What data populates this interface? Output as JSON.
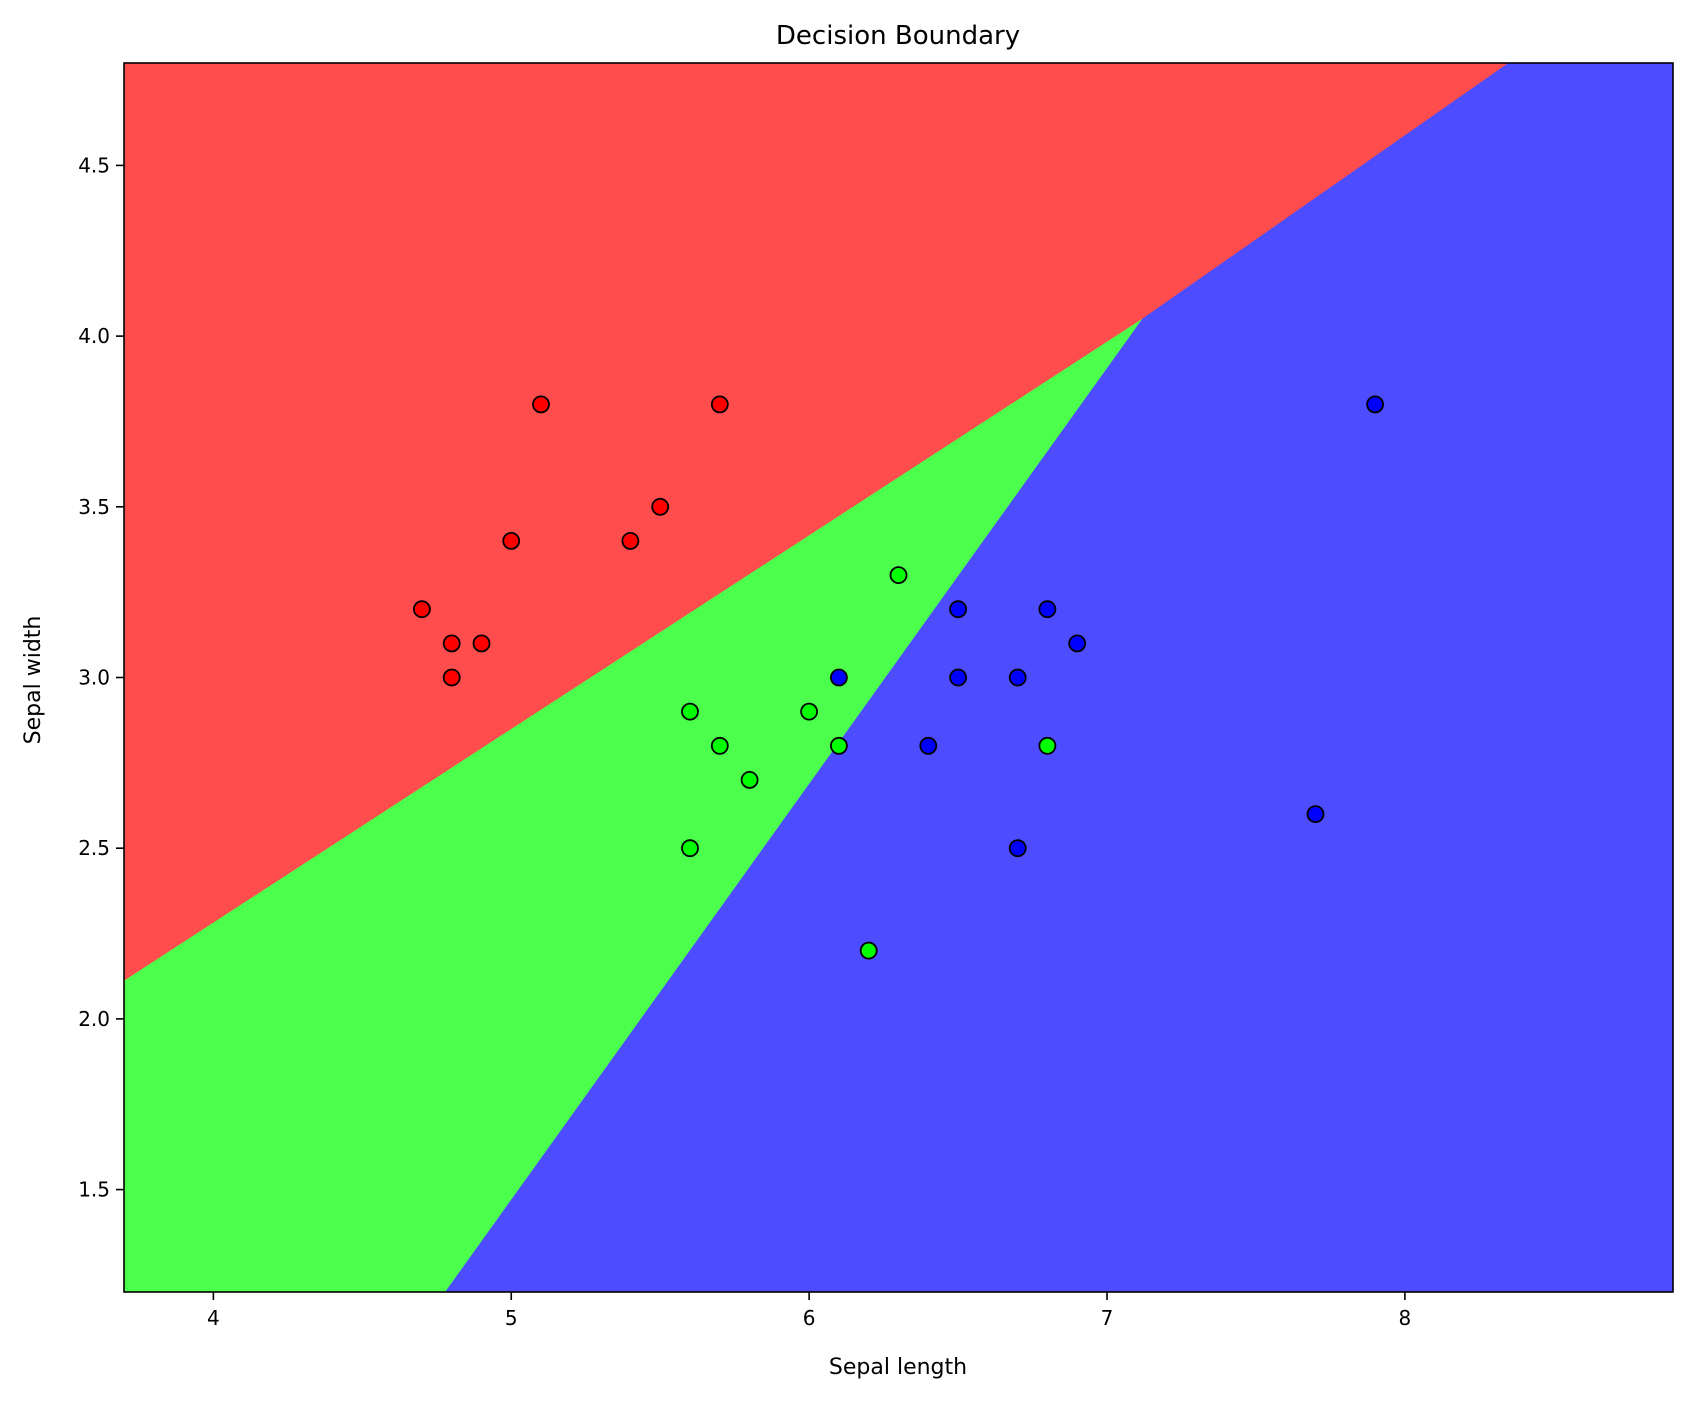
{
  "chart_data": {
    "type": "scatter",
    "title": "Decision Boundary",
    "xlabel": "Sepal length",
    "ylabel": "Sepal width",
    "xlim": [
      3.7,
      8.9
    ],
    "ylim": [
      1.2,
      4.8
    ],
    "x_ticks": [
      4,
      5,
      6,
      7,
      8
    ],
    "y_ticks": [
      1.5,
      2.0,
      2.5,
      3.0,
      3.5,
      4.0,
      4.5
    ],
    "x_tick_labels": [
      "4",
      "5",
      "6",
      "7",
      "8"
    ],
    "y_tick_labels": [
      "1.5",
      "2.0",
      "2.5",
      "3.0",
      "3.5",
      "4.0",
      "4.5"
    ],
    "grid": false,
    "legend": "none",
    "regions": [
      {
        "class": 0,
        "color": "#ff4d4d",
        "polygon": [
          [
            3.7,
            2.11
          ],
          [
            3.7,
            4.8
          ],
          [
            8.35,
            4.8
          ],
          [
            7.12,
            4.05
          ]
        ]
      },
      {
        "class": 1,
        "color": "#4dff4d",
        "polygon": [
          [
            3.7,
            1.2
          ],
          [
            3.7,
            2.11
          ],
          [
            7.12,
            4.05
          ],
          [
            4.78,
            1.2
          ]
        ]
      },
      {
        "class": 2,
        "color": "#4d4dff",
        "polygon": [
          [
            4.78,
            1.2
          ],
          [
            7.12,
            4.05
          ],
          [
            8.35,
            4.8
          ],
          [
            8.9,
            4.8
          ],
          [
            8.9,
            1.2
          ]
        ]
      }
    ],
    "series": [
      {
        "class": 0,
        "color": "#ff0000",
        "points": [
          [
            5.1,
            3.8
          ],
          [
            5.7,
            3.8
          ],
          [
            5.5,
            3.5
          ],
          [
            5.0,
            3.4
          ],
          [
            5.4,
            3.4
          ],
          [
            4.7,
            3.2
          ],
          [
            4.8,
            3.1
          ],
          [
            4.9,
            3.1
          ],
          [
            4.8,
            3.0
          ]
        ]
      },
      {
        "class": 1,
        "color": "#00ff00",
        "points": [
          [
            6.3,
            3.3
          ],
          [
            5.6,
            2.9
          ],
          [
            6.0,
            2.9
          ],
          [
            5.7,
            2.8
          ],
          [
            6.1,
            2.8
          ],
          [
            6.8,
            2.8
          ],
          [
            5.8,
            2.7
          ],
          [
            5.6,
            2.5
          ],
          [
            6.2,
            2.2
          ]
        ]
      },
      {
        "class": 2,
        "color": "#0000ff",
        "points": [
          [
            7.9,
            3.8
          ],
          [
            6.5,
            3.2
          ],
          [
            6.8,
            3.2
          ],
          [
            6.9,
            3.1
          ],
          [
            6.1,
            3.0
          ],
          [
            6.5,
            3.0
          ],
          [
            6.7,
            3.0
          ],
          [
            6.4,
            2.8
          ],
          [
            7.7,
            2.6
          ],
          [
            6.7,
            2.5
          ]
        ]
      }
    ]
  }
}
